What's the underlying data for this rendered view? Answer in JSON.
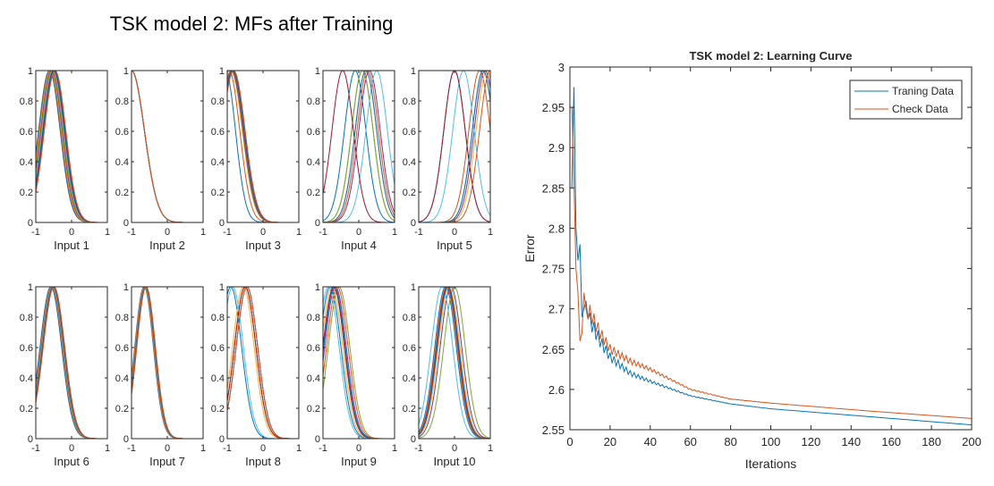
{
  "figure_title": "TSK model 2: MFs after Training",
  "colors": {
    "series": [
      "#0072BD",
      "#D95319",
      "#EDB120",
      "#7E2F8E",
      "#77AC30",
      "#4DBEEE",
      "#A2142F"
    ],
    "axis": "#262626",
    "training": "#0072BD",
    "check": "#D95319"
  },
  "chart_data": [
    {
      "type": "line",
      "title": "",
      "subplots": [
        {
          "xlabel": "Input 1",
          "centers": [
            -0.62,
            -0.6,
            -0.58,
            -0.56,
            -0.54,
            -0.52,
            -0.5,
            -0.48,
            -0.46
          ],
          "sigmas": [
            0.3,
            0.3,
            0.3,
            0.3,
            0.3,
            0.3,
            0.3,
            0.3,
            0.3
          ]
        },
        {
          "xlabel": "Input 2",
          "centers": [
            -1,
            -1,
            -1,
            -1,
            -1,
            -1,
            -1,
            -1,
            -1
          ],
          "sigmas": [
            0.36,
            0.36,
            0.36,
            0.36,
            0.36,
            0.36,
            0.36,
            0.36,
            0.36
          ]
        },
        {
          "xlabel": "Input 3",
          "centers": [
            -1.05,
            -0.95,
            -0.9,
            -0.88,
            -0.86,
            -0.85,
            -0.85,
            -0.84,
            -0.82
          ],
          "sigmas": [
            0.28,
            0.3,
            0.32,
            0.32,
            0.32,
            0.32,
            0.32,
            0.32,
            0.32
          ]
        },
        {
          "xlabel": "Input 4",
          "centers": [
            -0.1,
            0.1,
            0.2,
            0.3,
            0.1,
            0.5,
            -0.45,
            0.2,
            0.25
          ],
          "sigmas": [
            0.3,
            0.3,
            0.3,
            0.3,
            0.3,
            0.3,
            0.3,
            0.3,
            0.3
          ]
        },
        {
          "xlabel": "Input 5",
          "centers": [
            0.0,
            0.7,
            0.9,
            0.85,
            0.8,
            0.25,
            0.0,
            0.8,
            1.0
          ],
          "sigmas": [
            0.3,
            0.3,
            0.3,
            0.3,
            0.3,
            0.3,
            0.3,
            0.3,
            0.3
          ]
        },
        {
          "xlabel": "Input 6",
          "centers": [
            -0.58,
            -0.56,
            -0.55,
            -0.54,
            -0.53,
            -0.52,
            -0.51,
            -0.5,
            -0.49
          ],
          "sigmas": [
            0.3,
            0.3,
            0.3,
            0.3,
            0.3,
            0.3,
            0.3,
            0.3,
            0.3
          ]
        },
        {
          "xlabel": "Input 7",
          "centers": [
            -0.65,
            -0.64,
            -0.63,
            -0.62,
            -0.61,
            -0.6,
            -0.6,
            -0.6,
            -0.59
          ],
          "sigmas": [
            0.26,
            0.26,
            0.26,
            0.26,
            0.26,
            0.26,
            0.26,
            0.26,
            0.26
          ]
        },
        {
          "xlabel": "Input 8",
          "centers": [
            -0.9,
            -0.5,
            -0.55,
            -0.45,
            -0.5,
            -0.85,
            -0.5,
            -0.45,
            -0.45
          ],
          "sigmas": [
            0.3,
            0.3,
            0.3,
            0.3,
            0.3,
            0.3,
            0.3,
            0.3,
            0.3
          ]
        },
        {
          "xlabel": "Input 9",
          "centers": [
            -0.8,
            -0.7,
            -0.75,
            -0.65,
            -0.55,
            -0.85,
            -0.7,
            -0.68,
            -0.6
          ],
          "sigmas": [
            0.3,
            0.3,
            0.3,
            0.3,
            0.3,
            0.3,
            0.3,
            0.3,
            0.3
          ]
        },
        {
          "xlabel": "Input 10",
          "centers": [
            -0.25,
            -0.2,
            -0.15,
            -0.1,
            0.0,
            -0.35,
            -0.2,
            -0.18,
            -0.22
          ],
          "sigmas": [
            0.3,
            0.3,
            0.3,
            0.3,
            0.3,
            0.3,
            0.3,
            0.3,
            0.3
          ]
        }
      ],
      "xlim": [
        -1,
        1
      ],
      "ylim": [
        0,
        1
      ],
      "xticks": [
        "-1",
        "0",
        "1"
      ],
      "yticks": [
        "0",
        "0.2",
        "0.4",
        "0.6",
        "0.8",
        "1"
      ]
    },
    {
      "type": "line",
      "title": "TSK model 2: Learning Curve",
      "xlabel": "Iterations",
      "ylabel": "Error",
      "xlim": [
        0,
        200
      ],
      "ylim": [
        2.55,
        3.0
      ],
      "xticks": [
        "0",
        "20",
        "40",
        "60",
        "80",
        "100",
        "120",
        "140",
        "160",
        "180",
        "200"
      ],
      "yticks": [
        "2.55",
        "2.6",
        "2.65",
        "2.7",
        "2.75",
        "2.8",
        "2.85",
        "2.9",
        "2.95",
        "3"
      ],
      "legend_position": "top-right",
      "series": [
        {
          "name": "Traning Data",
          "anchor_x": [
            1,
            2,
            3,
            4,
            5,
            6,
            7,
            8,
            10,
            15,
            20,
            30,
            40,
            60,
            80,
            100,
            150,
            200
          ],
          "anchor_y": [
            2.85,
            2.975,
            2.8,
            2.76,
            2.78,
            2.69,
            2.7,
            2.71,
            2.685,
            2.66,
            2.64,
            2.62,
            2.61,
            2.592,
            2.582,
            2.576,
            2.566,
            2.556
          ],
          "oscillation_amplitude": 0.011,
          "oscillation_decay": 0.055
        },
        {
          "name": "Check Data",
          "anchor_x": [
            1,
            2,
            3,
            4,
            5,
            6,
            7,
            8,
            10,
            15,
            20,
            30,
            40,
            60,
            80,
            100,
            150,
            200
          ],
          "anchor_y": [
            2.95,
            2.86,
            2.75,
            2.72,
            2.66,
            2.67,
            2.72,
            2.7,
            2.695,
            2.67,
            2.65,
            2.635,
            2.625,
            2.6,
            2.588,
            2.583,
            2.573,
            2.564
          ],
          "oscillation_amplitude": 0.011,
          "oscillation_decay": 0.05
        }
      ]
    }
  ]
}
